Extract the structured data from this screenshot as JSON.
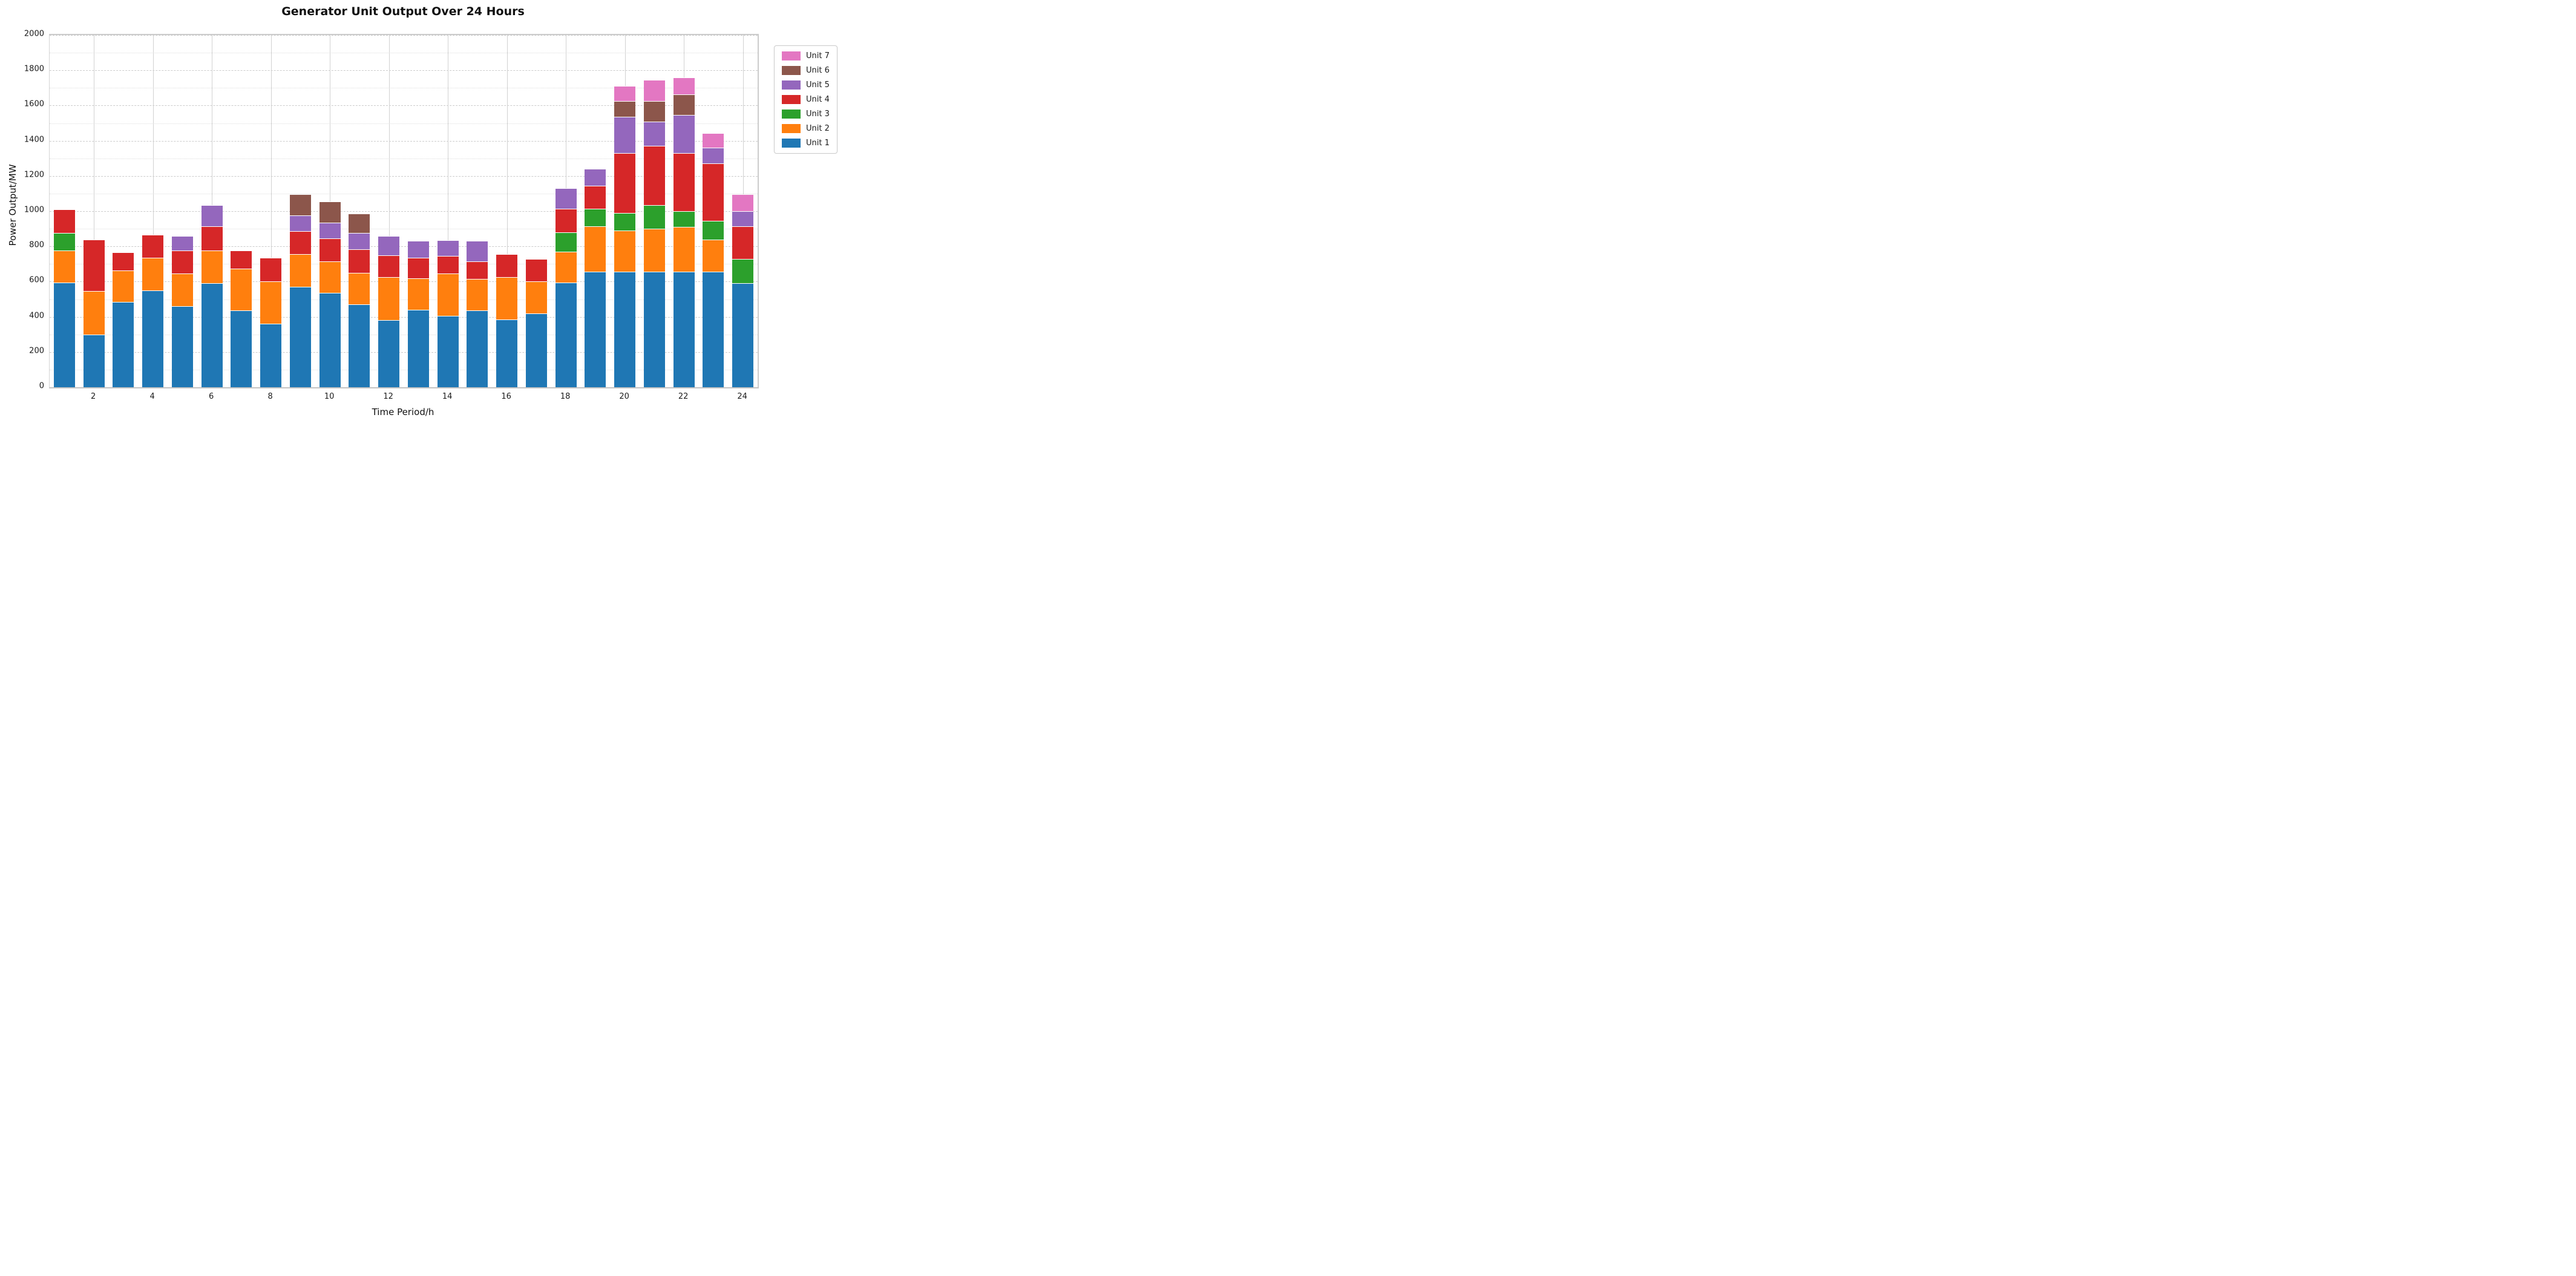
{
  "chart_data": {
    "type": "bar",
    "stacked": true,
    "title": "Generator Unit Output Over 24 Hours",
    "xlabel": "Time Period/h",
    "ylabel": "Power Output/MW",
    "ylim": [
      0,
      2000
    ],
    "ytick_interval": 200,
    "minor_ytick_interval": 100,
    "grid": "horizontal dashed major, dotted minor, solid vertical at ticks",
    "legend_position": "outside upper right",
    "categories": [
      1,
      2,
      3,
      4,
      5,
      6,
      7,
      8,
      9,
      10,
      11,
      12,
      13,
      14,
      15,
      16,
      17,
      18,
      19,
      20,
      21,
      22,
      23,
      24
    ],
    "xticks": [
      2,
      4,
      6,
      8,
      10,
      12,
      14,
      16,
      18,
      20,
      22,
      24
    ],
    "series": [
      {
        "name": "Unit 1",
        "color": "#1f77b4",
        "values": [
          595,
          300,
          485,
          550,
          460,
          590,
          435,
          360,
          570,
          535,
          470,
          380,
          440,
          405,
          435,
          385,
          420,
          595,
          655,
          655,
          655,
          655,
          655,
          590
        ]
      },
      {
        "name": "Unit 2",
        "color": "#ff7f0e",
        "values": [
          180,
          245,
          180,
          185,
          185,
          185,
          240,
          240,
          185,
          180,
          180,
          245,
          180,
          240,
          180,
          240,
          180,
          175,
          260,
          235,
          245,
          255,
          185,
          0
        ]
      },
      {
        "name": "Unit 3",
        "color": "#2ca02c",
        "values": [
          100,
          0,
          0,
          0,
          0,
          0,
          0,
          0,
          0,
          0,
          0,
          0,
          0,
          0,
          0,
          0,
          0,
          110,
          100,
          100,
          135,
          90,
          105,
          140
        ]
      },
      {
        "name": "Unit 4",
        "color": "#d62728",
        "values": [
          135,
          295,
          100,
          130,
          130,
          140,
          100,
          135,
          130,
          130,
          135,
          125,
          115,
          100,
          100,
          130,
          130,
          135,
          130,
          340,
          335,
          330,
          325,
          185
        ]
      },
      {
        "name": "Unit 5",
        "color": "#9467bd",
        "values": [
          0,
          0,
          0,
          0,
          85,
          120,
          0,
          0,
          90,
          90,
          90,
          110,
          95,
          90,
          115,
          0,
          0,
          115,
          95,
          205,
          140,
          215,
          90,
          85
        ]
      },
      {
        "name": "Unit 6",
        "color": "#8c564b",
        "values": [
          0,
          0,
          0,
          0,
          0,
          0,
          0,
          0,
          120,
          120,
          110,
          0,
          0,
          0,
          0,
          0,
          0,
          0,
          0,
          90,
          115,
          120,
          0,
          0
        ]
      },
      {
        "name": "Unit 7",
        "color": "#e377c2",
        "values": [
          0,
          0,
          0,
          0,
          0,
          0,
          0,
          0,
          0,
          0,
          0,
          0,
          0,
          0,
          0,
          0,
          0,
          0,
          0,
          85,
          120,
          95,
          85,
          95
        ]
      }
    ],
    "legend_entries_top_to_bottom": [
      "Unit 7",
      "Unit 6",
      "Unit 5",
      "Unit 4",
      "Unit 3",
      "Unit 2",
      "Unit 1"
    ],
    "totals": [
      1010,
      840,
      765,
      865,
      860,
      1035,
      775,
      735,
      1095,
      1055,
      985,
      860,
      830,
      835,
      830,
      755,
      730,
      1130,
      1240,
      1710,
      1745,
      1760,
      1445,
      1095
    ]
  }
}
